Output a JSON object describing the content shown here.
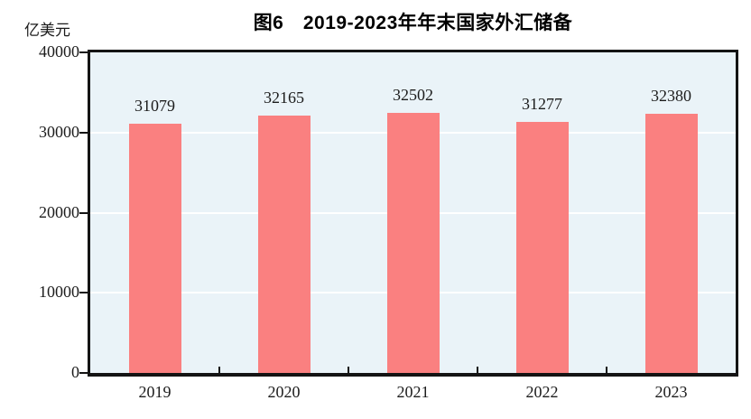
{
  "chart_data": {
    "type": "bar",
    "title": "图6　2019-2023年年末国家外汇储备",
    "unit_label": "亿美元",
    "categories": [
      "2019",
      "2020",
      "2021",
      "2022",
      "2023"
    ],
    "values": [
      31079,
      32165,
      32502,
      31277,
      32380
    ],
    "xlabel": "",
    "ylabel": "亿美元",
    "ylim": [
      0,
      40000
    ],
    "yticks": [
      0,
      10000,
      20000,
      30000,
      40000
    ],
    "grid": "horizontal",
    "legend": "none",
    "colors": {
      "bar": "#fa8080",
      "plot_background": "#eaf3f8",
      "gridline": "#ffffff",
      "axis": "#141414",
      "text": "#1c1c1c"
    }
  }
}
